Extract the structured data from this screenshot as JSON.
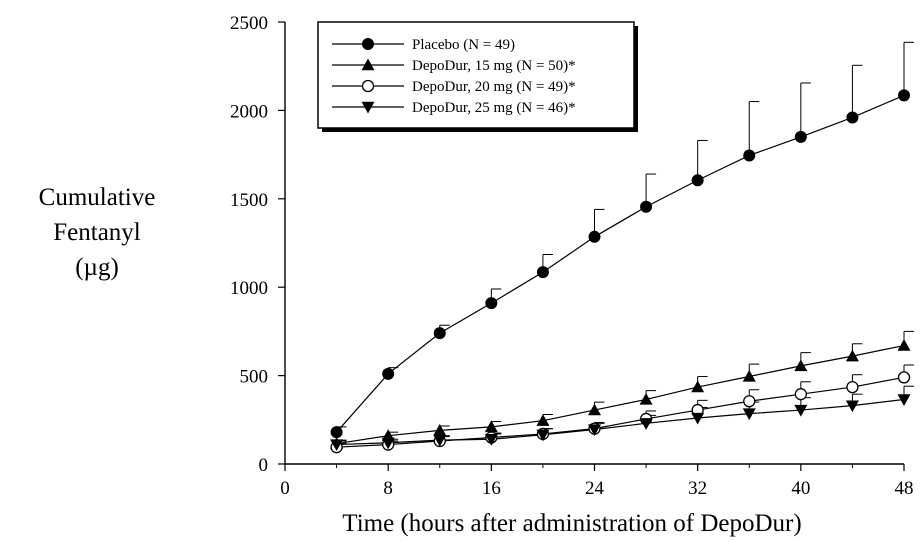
{
  "chart_data": {
    "type": "line",
    "xlabel": "Time (hours after administration of DepoDur)",
    "ylabel": [
      "Cumulative",
      "Fentanyl",
      "(µg)"
    ],
    "xlim": [
      0,
      48
    ],
    "ylim": [
      0,
      2500
    ],
    "xticks": [
      "0",
      "8",
      "16",
      "24",
      "32",
      "40",
      "48"
    ],
    "yticks": [
      "0",
      "500",
      "1000",
      "1500",
      "2000",
      "2500"
    ],
    "grid": false,
    "legend_placement": "top-left",
    "x": [
      4,
      8,
      12,
      16,
      20,
      24,
      28,
      32,
      36,
      40,
      44,
      48
    ],
    "series": [
      {
        "name": "Placebo (N = 49)",
        "marker": "filled-circle",
        "values": [
          180,
          510,
          740,
          910,
          1085,
          1285,
          1455,
          1605,
          1745,
          1850,
          1960,
          2085
        ],
        "error": [
          30,
          35,
          45,
          80,
          100,
          155,
          185,
          225,
          305,
          305,
          295,
          300
        ]
      },
      {
        "name": "DepoDur, 15 mg (N = 50)*",
        "marker": "filled-triangle-up",
        "values": [
          115,
          160,
          190,
          210,
          245,
          305,
          365,
          435,
          495,
          555,
          610,
          670
        ],
        "error": [
          20,
          20,
          25,
          30,
          35,
          45,
          50,
          60,
          70,
          75,
          70,
          80
        ]
      },
      {
        "name": "DepoDur, 20 mg (N = 49)*",
        "marker": "open-circle",
        "values": [
          95,
          110,
          130,
          150,
          170,
          200,
          255,
          305,
          355,
          395,
          435,
          490
        ],
        "error": [
          20,
          20,
          25,
          25,
          30,
          35,
          45,
          55,
          65,
          70,
          70,
          70
        ]
      },
      {
        "name": "DepoDur, 25 mg (N = 46)*",
        "marker": "filled-triangle-down",
        "values": [
          110,
          120,
          135,
          140,
          165,
          195,
          230,
          260,
          285,
          305,
          330,
          365
        ],
        "error": [
          20,
          20,
          25,
          30,
          35,
          35,
          45,
          60,
          65,
          70,
          65,
          75
        ]
      }
    ]
  }
}
